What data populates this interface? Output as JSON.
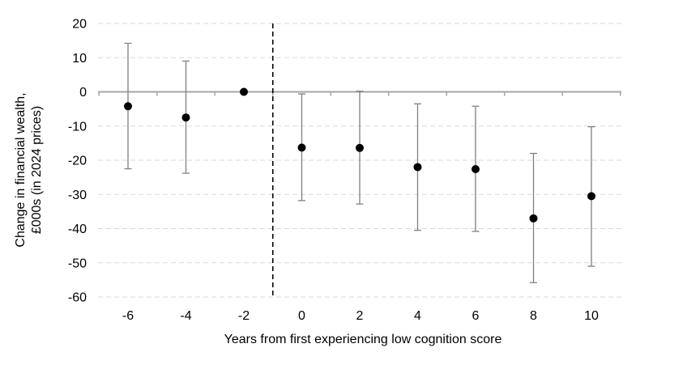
{
  "chart_data": {
    "type": "scatter",
    "title": "",
    "xlabel": "Years from first experiencing low cognition score",
    "ylabel_lines": [
      "Change in financial wealth,",
      "£000s (in 2024 prices)"
    ],
    "x": [
      -6,
      -4,
      -2,
      0,
      2,
      4,
      6,
      8,
      10
    ],
    "x_tick_labels": [
      "-6",
      "-4",
      "-2",
      "0",
      "2",
      "4",
      "6",
      "8",
      "10"
    ],
    "y_tick_labels": [
      "20",
      "10",
      "0",
      "-10",
      "-20",
      "-30",
      "-40",
      "-50",
      "-60"
    ],
    "y_ticks": [
      20,
      10,
      0,
      -10,
      -20,
      -30,
      -40,
      -50,
      -60
    ],
    "ylim": [
      -60,
      20
    ],
    "series": [
      {
        "values": [
          -4.2,
          -7.5,
          0,
          -16.3,
          -16.4,
          -22,
          -22.6,
          -37,
          -30.5
        ],
        "ci_low": [
          -22.5,
          -23.8,
          0,
          -31.8,
          -32.8,
          -40.5,
          -40.8,
          -55.8,
          -51
        ],
        "ci_high": [
          14.2,
          9,
          0,
          -0.6,
          0.2,
          -3.5,
          -4.2,
          -18,
          -10.2
        ]
      }
    ],
    "reference_line_x": -1,
    "reference_line_style": "dashed",
    "grid": "horizontal-dashed",
    "colors": {
      "marker": "#000000",
      "error_bar": "#808080",
      "grid": "#d9d9d9",
      "zero_line": "#a6a6a6"
    }
  }
}
